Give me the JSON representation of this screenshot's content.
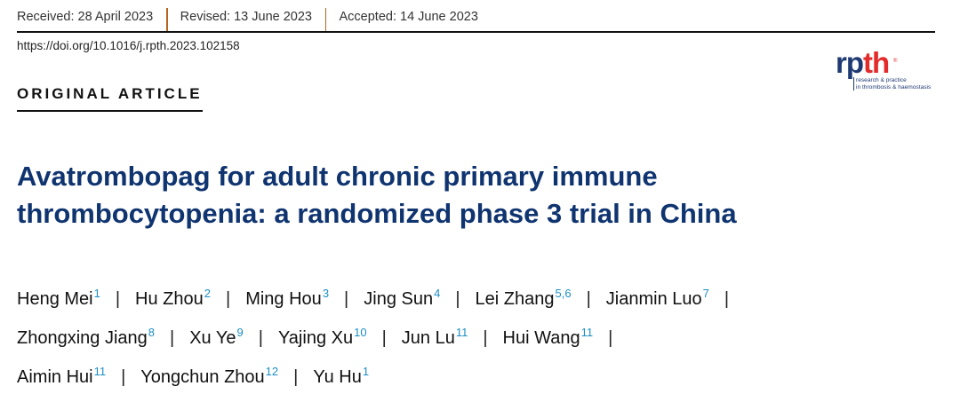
{
  "header": {
    "received": "Received: 28 April 2023",
    "revised": "Revised: 13 June 2023",
    "accepted": "Accepted: 14 June 2023",
    "doi": "https://doi.org/10.1016/j.rpth.2023.102158",
    "article_type": "ORIGINAL ARTICLE"
  },
  "logo": {
    "rp": "rp",
    "th": "th",
    "reg": "®",
    "line1": "research & practice",
    "line2": "in thrombosis & haemostasis",
    "colors": {
      "navy": "#1f3a73",
      "red": "#e32b2b"
    }
  },
  "title": {
    "line1": "Avatrombopag for adult chronic primary immune",
    "line2": "thrombocytopenia: a randomized phase 3 trial in China"
  },
  "authors": [
    [
      {
        "name": "Heng Mei",
        "aff": "1"
      },
      {
        "name": "Hu Zhou",
        "aff": "2"
      },
      {
        "name": "Ming Hou",
        "aff": "3"
      },
      {
        "name": "Jing Sun",
        "aff": "4"
      },
      {
        "name": "Lei Zhang",
        "aff": "5,6"
      },
      {
        "name": "Jianmin Luo",
        "aff": "7"
      }
    ],
    [
      {
        "name": "Zhongxing Jiang",
        "aff": "8"
      },
      {
        "name": "Xu Ye",
        "aff": "9"
      },
      {
        "name": "Yajing Xu",
        "aff": "10"
      },
      {
        "name": "Jun Lu",
        "aff": "11"
      },
      {
        "name": "Hui Wang",
        "aff": "11"
      }
    ],
    [
      {
        "name": "Aimin Hui",
        "aff": "11"
      },
      {
        "name": "Yongchun Zhou",
        "aff": "12"
      },
      {
        "name": "Yu Hu",
        "aff": "1"
      }
    ]
  ],
  "separator": "|",
  "colors": {
    "title": "#0f3470",
    "affiliation": "#1b8fc4",
    "date_separator": "#b5651d"
  }
}
